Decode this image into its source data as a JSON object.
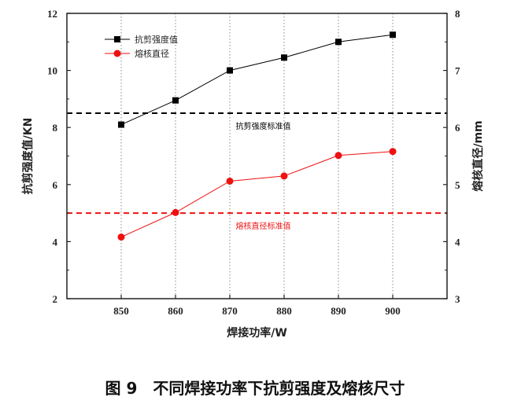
{
  "caption": "图 9　不同焊接功率下抗剪强度及熔核尺寸",
  "chart_data": {
    "type": "line",
    "x": [
      850,
      860,
      870,
      880,
      890,
      900
    ],
    "xlabel": "焊接功率/W",
    "xticks": [
      "850",
      "860",
      "870",
      "880",
      "890",
      "900"
    ],
    "xlim": [
      840,
      910
    ],
    "ylabel_left": "抗剪强度值/KN",
    "ylim_left": [
      2,
      12
    ],
    "yticks_left": [
      "2",
      "4",
      "6",
      "8",
      "10",
      "12"
    ],
    "ylabel_right": "熔核直径/mm",
    "ylim_right": [
      3,
      8
    ],
    "yticks_right": [
      "3",
      "4",
      "5",
      "6",
      "7",
      "8"
    ],
    "series": [
      {
        "name": "抗剪强度值",
        "axis": "left",
        "marker": "square",
        "color": "#000000",
        "values": [
          8.1,
          8.95,
          10.0,
          10.45,
          11.0,
          11.25
        ]
      },
      {
        "name": "熔核直径",
        "axis": "right",
        "marker": "circle",
        "color": "#ee1111",
        "values": [
          4.08,
          4.51,
          5.06,
          5.15,
          5.51,
          5.58
        ]
      }
    ],
    "reference_lines": [
      {
        "label": "抗剪强度标准值",
        "axis": "left",
        "value": 8.5,
        "color": "#000000"
      },
      {
        "label": "熔核直径标准值",
        "axis": "right",
        "value": 4.5,
        "color": "#ee1111"
      }
    ],
    "grid": "vertical dotted",
    "legend_position": "top-left"
  }
}
